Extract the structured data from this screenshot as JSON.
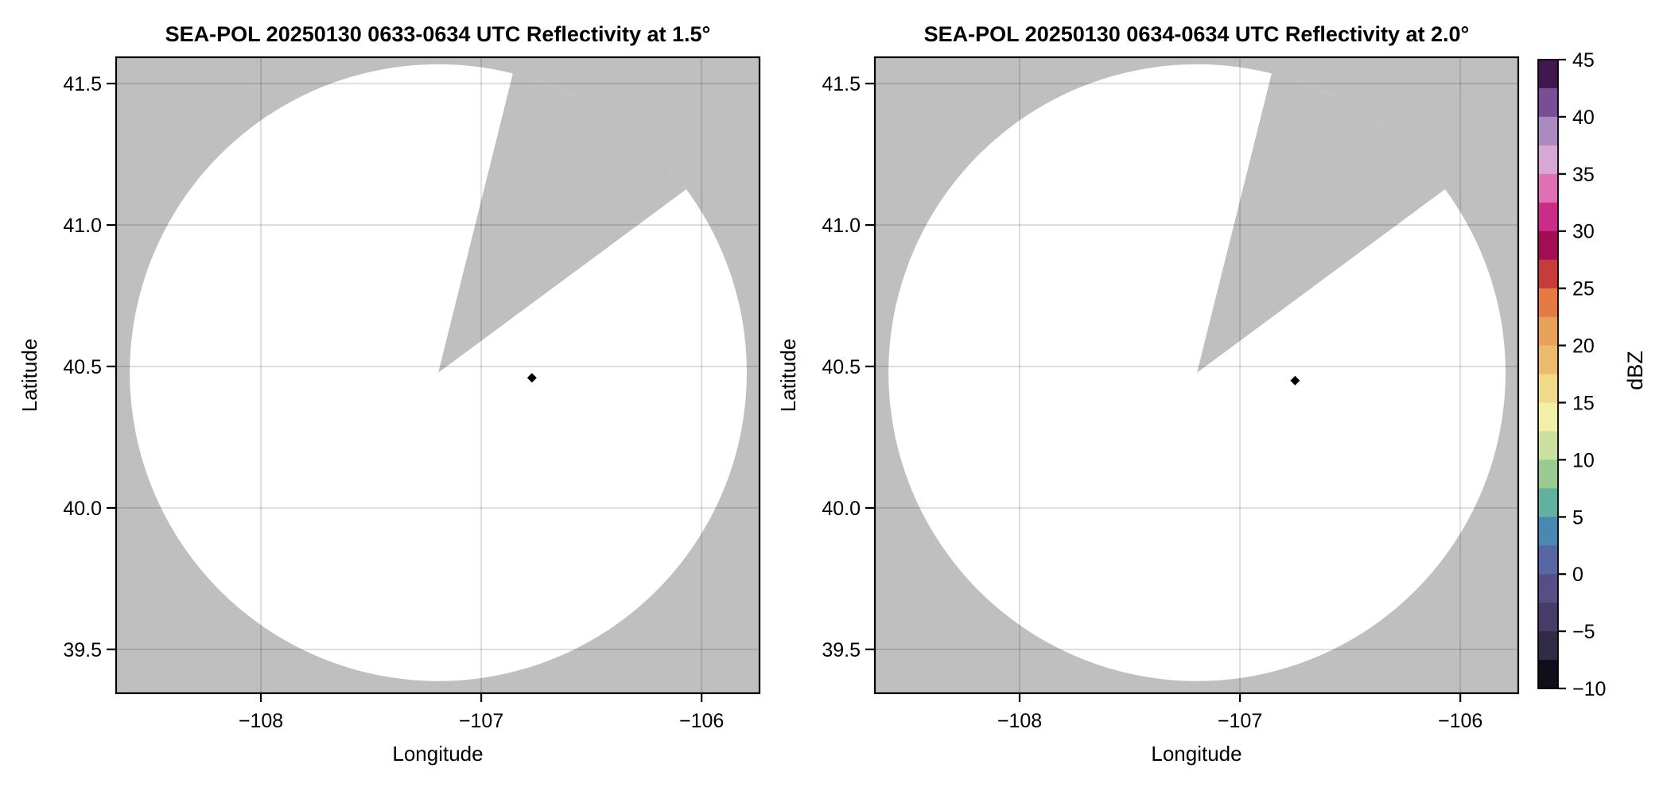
{
  "figure": {
    "background": "#ffffff",
    "colors": {
      "masked": "#bfbfbf",
      "scan": "#ffffff",
      "grid": "rgba(0,0,0,0.13)",
      "frame": "#000000",
      "text": "#000000"
    }
  },
  "panels": [
    {
      "title": "SEA-POL 20250130 0633-0634 UTC Reflectivity at 1.5°",
      "xlabel": "Longitude",
      "ylabel": "Latitude",
      "xlim": [
        -108.657,
        -105.737
      ],
      "ylim": [
        39.345,
        41.593
      ],
      "x_tickvals": [
        -108,
        -107,
        -106
      ],
      "x_ticklabels": [
        "−108",
        "−107",
        "−106"
      ],
      "y_tickvals": [
        41.5,
        41.0,
        40.5,
        40.0,
        39.5
      ],
      "y_ticklabels": [
        "41.5",
        "41.0",
        "40.5",
        "40.0",
        "39.5"
      ],
      "radar": {
        "lon": -107.195,
        "lat": 40.478,
        "scan_radius_deg_lat": 1.09,
        "blocked_azimuth_deg": [
          14.0,
          53.5
        ]
      },
      "echoes": [
        {
          "lon": -106.77,
          "lat": 40.46,
          "color": "#000000"
        }
      ]
    },
    {
      "title": "SEA-POL 20250130 0634-0634 UTC Reflectivity at 2.0°",
      "xlabel": "Longitude",
      "ylabel": "Latitude",
      "xlim": [
        -108.657,
        -105.737
      ],
      "ylim": [
        39.345,
        41.593
      ],
      "x_tickvals": [
        -108,
        -107,
        -106
      ],
      "x_ticklabels": [
        "−108",
        "−107",
        "−106"
      ],
      "y_tickvals": [
        41.5,
        41.0,
        40.5,
        40.0,
        39.5
      ],
      "y_ticklabels": [
        "41.5",
        "41.0",
        "40.5",
        "40.0",
        "39.5"
      ],
      "radar": {
        "lon": -107.195,
        "lat": 40.478,
        "scan_radius_deg_lat": 1.09,
        "blocked_azimuth_deg": [
          14.0,
          53.5
        ]
      },
      "echoes": [
        {
          "lon": -106.75,
          "lat": 40.45,
          "color": "#000000"
        }
      ]
    }
  ],
  "colorbar": {
    "label": "dBZ",
    "vmin": -10,
    "vmax": 45,
    "tickvals": [
      45,
      40,
      35,
      30,
      25,
      20,
      15,
      10,
      5,
      0,
      -5,
      -10
    ],
    "ticklabels": [
      "45",
      "40",
      "35",
      "30",
      "25",
      "20",
      "15",
      "10",
      "5",
      "0",
      "−5",
      "−10"
    ],
    "segments": [
      {
        "from": 45.0,
        "to": 42.5,
        "color": "#421750"
      },
      {
        "from": 42.5,
        "to": 40.0,
        "color": "#7a4e96"
      },
      {
        "from": 40.0,
        "to": 37.5,
        "color": "#aa8ac1"
      },
      {
        "from": 37.5,
        "to": 35.0,
        "color": "#d8a8d4"
      },
      {
        "from": 35.0,
        "to": 32.5,
        "color": "#de71b3"
      },
      {
        "from": 32.5,
        "to": 30.0,
        "color": "#ca2c87"
      },
      {
        "from": 30.0,
        "to": 27.5,
        "color": "#a20d53"
      },
      {
        "from": 27.5,
        "to": 25.0,
        "color": "#c73b3a"
      },
      {
        "from": 25.0,
        "to": 22.5,
        "color": "#e57a44"
      },
      {
        "from": 22.5,
        "to": 20.0,
        "color": "#e8a159"
      },
      {
        "from": 20.0,
        "to": 17.5,
        "color": "#ebba6c"
      },
      {
        "from": 17.5,
        "to": 15.0,
        "color": "#f0d989"
      },
      {
        "from": 15.0,
        "to": 12.5,
        "color": "#f2efa7"
      },
      {
        "from": 12.5,
        "to": 10.0,
        "color": "#cce09f"
      },
      {
        "from": 10.0,
        "to": 7.5,
        "color": "#9bc992"
      },
      {
        "from": 7.5,
        "to": 5.0,
        "color": "#62b09e"
      },
      {
        "from": 5.0,
        "to": 2.5,
        "color": "#4a88b4"
      },
      {
        "from": 2.5,
        "to": 0.0,
        "color": "#5866a6"
      },
      {
        "from": 0.0,
        "to": -2.5,
        "color": "#584e87"
      },
      {
        "from": -2.5,
        "to": -5.0,
        "color": "#473c67"
      },
      {
        "from": -5.0,
        "to": -7.5,
        "color": "#322b46"
      },
      {
        "from": -7.5,
        "to": -10.0,
        "color": "#100e1a"
      }
    ]
  },
  "chart_data": [
    {
      "type": "heatmap",
      "title": "SEA-POL 20250130 0633-0634 UTC Reflectivity at 1.5°",
      "xlabel": "Longitude",
      "ylabel": "Latitude",
      "xlim": [
        -108.66,
        -105.74
      ],
      "ylim": [
        39.34,
        41.59
      ],
      "x_ticks": [
        -108,
        -107,
        -106
      ],
      "y_ticks": [
        39.5,
        40.0,
        40.5,
        41.0,
        41.5
      ],
      "grid": true,
      "legend": "colorbar right, shared",
      "colorbar_label": "dBZ",
      "color_range": [
        -10,
        45
      ],
      "radar_center": {
        "lon": -107.2,
        "lat": 40.48
      },
      "scan_radius_deg_lat": 1.09,
      "blocked_azimuth_deg": [
        14.0,
        53.5
      ],
      "points": [
        {
          "lon": -106.77,
          "lat": 40.46,
          "dbz_est": -10
        }
      ],
      "notes": "White circular PPI scan area (no significant echo) on gray masked background; gray wedge = blocked/unscanned sector; single near-black echo pixel."
    },
    {
      "type": "heatmap",
      "title": "SEA-POL 20250130 0634-0634 UTC Reflectivity at 2.0°",
      "xlabel": "Longitude",
      "ylabel": "Latitude",
      "xlim": [
        -108.66,
        -105.74
      ],
      "ylim": [
        39.34,
        41.59
      ],
      "x_ticks": [
        -108,
        -107,
        -106
      ],
      "y_ticks": [
        39.5,
        40.0,
        40.5,
        41.0,
        41.5
      ],
      "grid": true,
      "legend": "colorbar right, shared",
      "colorbar_label": "dBZ",
      "color_range": [
        -10,
        45
      ],
      "radar_center": {
        "lon": -107.2,
        "lat": 40.48
      },
      "scan_radius_deg_lat": 1.09,
      "blocked_azimuth_deg": [
        14.0,
        53.5
      ],
      "points": [
        {
          "lon": -106.75,
          "lat": 40.45,
          "dbz_est": -10
        }
      ],
      "notes": "Same scan geometry as 1.5° panel, one minute later at 2.0° elevation."
    }
  ]
}
